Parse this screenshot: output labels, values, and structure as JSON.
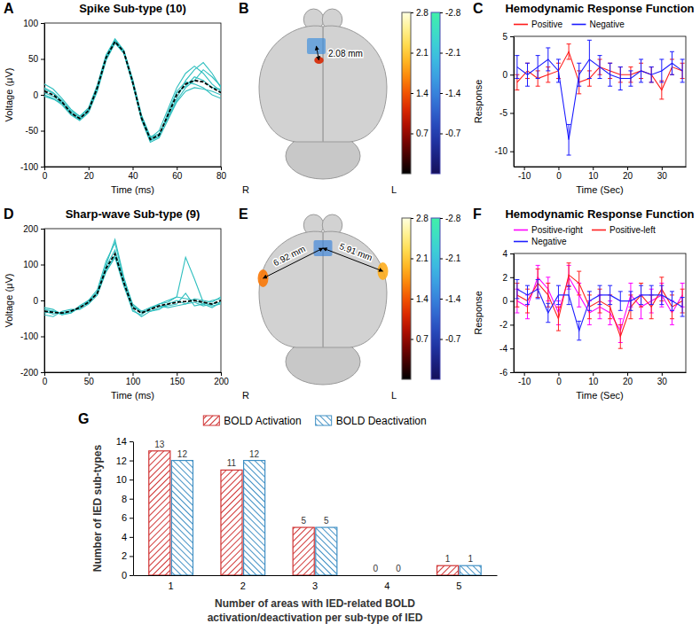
{
  "chart_data": [
    {
      "type": "line",
      "panel_label": "A",
      "title": "Spike Sub-type (10)",
      "x_label": "Time (ms)",
      "y_label": "Voltage (μV)",
      "x": [
        0,
        4,
        8,
        12,
        16,
        20,
        24,
        28,
        32,
        36,
        40,
        44,
        48,
        52,
        56,
        60,
        64,
        68,
        72,
        76,
        80
      ],
      "xlim": [
        0,
        80
      ],
      "xticks": [
        0,
        20,
        40,
        60,
        80
      ],
      "ylim": [
        -100,
        100
      ],
      "yticks": [
        -100,
        -50,
        0,
        50,
        100
      ],
      "series": [
        {
          "color": "#2fbfbf",
          "values": [
            10,
            3,
            -8,
            -22,
            -30,
            -20,
            12,
            55,
            78,
            62,
            20,
            -30,
            -60,
            -50,
            -20,
            10,
            30,
            40,
            30,
            15,
            5
          ]
        },
        {
          "color": "#2fbfbf",
          "values": [
            0,
            -5,
            -14,
            -28,
            -36,
            -25,
            5,
            48,
            72,
            58,
            15,
            -35,
            -66,
            -60,
            -35,
            -10,
            5,
            10,
            8,
            5,
            0
          ]
        },
        {
          "color": "#2fbfbf",
          "values": [
            15,
            8,
            -5,
            -20,
            -30,
            -18,
            14,
            56,
            76,
            62,
            22,
            -28,
            -58,
            -55,
            -30,
            -5,
            20,
            35,
            45,
            30,
            10
          ]
        },
        {
          "color": "#2fbfbf",
          "values": [
            -2,
            -6,
            -12,
            -27,
            -35,
            -24,
            8,
            50,
            73,
            58,
            16,
            -33,
            -64,
            -58,
            -25,
            5,
            18,
            15,
            10,
            0,
            -5
          ]
        },
        {
          "color": "#2fbfbf",
          "values": [
            8,
            2,
            -10,
            -26,
            -34,
            -21,
            9,
            53,
            75,
            61,
            19,
            -31,
            -63,
            -57,
            -27,
            3,
            12,
            25,
            20,
            10,
            8
          ]
        },
        {
          "color": "#2fbfbf",
          "values": [
            3,
            -2,
            -12,
            -24,
            -32,
            -23,
            11,
            51,
            74,
            59,
            17,
            -30,
            -61,
            -54,
            -33,
            -8,
            10,
            20,
            35,
            25,
            12
          ]
        },
        {
          "color": "#000000",
          "line_style": "dashed",
          "values": [
            5,
            0,
            -10,
            -25,
            -33,
            -22,
            10,
            52,
            74,
            60,
            18,
            -32,
            -62,
            -56,
            -28,
            0,
            15,
            20,
            18,
            10,
            3
          ]
        }
      ]
    },
    {
      "type": "brain_map",
      "panel_label": "B",
      "side_labels": [
        "R",
        "L"
      ],
      "annotations": [
        "2.08 mm"
      ],
      "clusters": [
        {
          "value": -1.5
        },
        {
          "value": 1.1
        }
      ],
      "colorbars": [
        {
          "lim": [
            0,
            2.8
          ],
          "ticks": [
            0.7,
            1.4,
            2.1,
            2.8
          ]
        },
        {
          "lim": [
            -2.8,
            0
          ],
          "ticks": [
            -2.8,
            -2.1,
            -1.4,
            -0.7
          ]
        }
      ]
    },
    {
      "type": "line",
      "panel_label": "C",
      "title": "Hemodynamic Response Function",
      "x_label": "Time (Sec)",
      "y_label": "Response",
      "x": [
        -12,
        -9,
        -6,
        -3,
        0,
        3,
        6,
        9,
        12,
        15,
        18,
        21,
        24,
        27,
        30,
        33,
        36
      ],
      "xlim": [
        -13,
        37
      ],
      "xticks": [
        -10,
        0,
        10,
        20,
        30
      ],
      "ylim": [
        -12,
        5
      ],
      "yticks": [
        -10,
        -5,
        0,
        5
      ],
      "legend": "top",
      "series": [
        {
          "name": "Positive",
          "color": "#ff1a1a",
          "values": [
            -1,
            0.5,
            -0.5,
            0,
            0.5,
            3,
            -1,
            -0.5,
            1,
            0.5,
            0,
            0,
            0.5,
            0,
            -2,
            1,
            0.5
          ],
          "errors": [
            1,
            1,
            1,
            1,
            1,
            1,
            1.5,
            1,
            1,
            1,
            1,
            1,
            1,
            1,
            1.2,
            1,
            1
          ]
        },
        {
          "name": "Negative",
          "color": "#1a1aff",
          "values": [
            1,
            0,
            1,
            2,
            0.5,
            -8.5,
            0,
            2,
            1,
            0,
            -0.5,
            -0.5,
            0.5,
            0,
            0.5,
            1.5,
            0.5
          ],
          "errors": [
            1.5,
            1.5,
            1.5,
            1.5,
            1.5,
            2,
            1.5,
            2.5,
            1.5,
            1.5,
            1.5,
            1,
            1.5,
            1,
            1.5,
            1.5,
            1.5
          ]
        }
      ]
    },
    {
      "type": "line",
      "panel_label": "D",
      "title": "Sharp-wave Sub-type (9)",
      "x_label": "Time (ms)",
      "y_label": "Voltage (μV)",
      "x": [
        0,
        10,
        20,
        30,
        40,
        50,
        60,
        70,
        80,
        90,
        100,
        110,
        120,
        130,
        140,
        150,
        160,
        170,
        180,
        190,
        200
      ],
      "xlim": [
        0,
        200
      ],
      "xticks": [
        0,
        50,
        100,
        150,
        200
      ],
      "ylim": [
        -200,
        200
      ],
      "yticks": [
        -200,
        -100,
        0,
        100,
        200
      ],
      "series": [
        {
          "color": "#2fbfbf",
          "values": [
            -20,
            -25,
            -40,
            -35,
            -15,
            0,
            30,
            110,
            160,
            60,
            -10,
            -30,
            -20,
            -10,
            0,
            10,
            5,
            0,
            -10,
            -20,
            -5
          ]
        },
        {
          "color": "#2fbfbf",
          "values": [
            -40,
            -45,
            -30,
            -25,
            -25,
            -10,
            15,
            80,
            120,
            40,
            -25,
            -45,
            -30,
            -20,
            -15,
            -10,
            20,
            -15,
            -10,
            0,
            5
          ]
        },
        {
          "color": "#2fbfbf",
          "values": [
            -25,
            -30,
            -35,
            -35,
            -20,
            -5,
            25,
            95,
            140,
            55,
            -15,
            -35,
            -25,
            -10,
            -5,
            10,
            120,
            60,
            -5,
            -15,
            -10
          ]
        },
        {
          "color": "#2fbfbf",
          "values": [
            -35,
            -30,
            -40,
            -28,
            -22,
            0,
            18,
            85,
            125,
            45,
            -30,
            -40,
            -20,
            -15,
            -20,
            -15,
            -10,
            5,
            0,
            -5,
            10
          ]
        },
        {
          "color": "#2fbfbf",
          "values": [
            -30,
            -38,
            -32,
            -32,
            -18,
            -8,
            22,
            100,
            170,
            65,
            -15,
            -30,
            -30,
            -25,
            -10,
            0,
            -10,
            -5,
            -15,
            -10,
            -5
          ]
        },
        {
          "color": "#000000",
          "line_style": "dashed",
          "values": [
            -30,
            -33,
            -35,
            -30,
            -20,
            -5,
            20,
            90,
            130,
            50,
            -20,
            -35,
            -25,
            -15,
            -10,
            -5,
            -3,
            0,
            -5,
            -10,
            0
          ]
        }
      ]
    },
    {
      "type": "brain_map",
      "panel_label": "E",
      "side_labels": [
        "R",
        "L"
      ],
      "annotations": [
        "6.92 mm",
        "5.91 mm"
      ],
      "clusters": [
        {
          "value": -1.4
        },
        {
          "value": 1.6
        },
        {
          "value": 1.9
        }
      ],
      "colorbars": [
        {
          "lim": [
            0,
            2.8
          ],
          "ticks": [
            0.7,
            1.4,
            2.1,
            2.8
          ]
        },
        {
          "lim": [
            -2.8,
            0
          ],
          "ticks": [
            -2.8,
            -2.1,
            -1.4,
            -0.7
          ]
        }
      ]
    },
    {
      "type": "line",
      "panel_label": "F",
      "title": "Hemodynamic Response Function",
      "x_label": "Time (Sec)",
      "y_label": "Response",
      "x": [
        -12,
        -9,
        -6,
        -3,
        0,
        3,
        6,
        9,
        12,
        15,
        18,
        21,
        24,
        27,
        30,
        33,
        36
      ],
      "xlim": [
        -13,
        37
      ],
      "xticks": [
        -10,
        0,
        10,
        20,
        30
      ],
      "ylim": [
        -6,
        4
      ],
      "yticks": [
        -6,
        -4,
        -2,
        0,
        2,
        4
      ],
      "legend": "top",
      "series": [
        {
          "name": "Positive-right",
          "color": "#ff00ff",
          "values": [
            0,
            -0.5,
            2,
            1,
            -1,
            2,
            0.5,
            -1,
            -0.5,
            -1,
            -2.5,
            0.5,
            -0.5,
            0,
            0.5,
            -1,
            0.5
          ],
          "errors": [
            1,
            1,
            1,
            1,
            1,
            1,
            1,
            1,
            1,
            1,
            1,
            1,
            1,
            1,
            1,
            1,
            1
          ]
        },
        {
          "name": "Positive-left",
          "color": "#ff2020",
          "values": [
            0.5,
            0,
            1.5,
            0.5,
            -1.5,
            2.2,
            1.5,
            -0.5,
            0,
            -0.5,
            -3,
            -0.5,
            0.5,
            -0.5,
            1,
            -0.5,
            0
          ],
          "errors": [
            1,
            1,
            1.2,
            1,
            1,
            1,
            1,
            1,
            1,
            1,
            1,
            1,
            1,
            1,
            1,
            1,
            1
          ]
        },
        {
          "name": "Negative",
          "color": "#2020ff",
          "values": [
            1,
            0.5,
            1,
            -1,
            0.5,
            0.5,
            -2.5,
            0,
            0.5,
            0.5,
            0,
            0,
            0.5,
            0.5,
            0.5,
            0,
            -0.5
          ],
          "errors": [
            0.8,
            0.8,
            0.8,
            0.8,
            0.8,
            0.8,
            0.8,
            0.8,
            0.8,
            0.8,
            0.8,
            0.8,
            0.8,
            0.8,
            0.8,
            0.8,
            0.8
          ]
        }
      ]
    },
    {
      "type": "bar",
      "panel_label": "G",
      "x_label": "Number of areas with IED-related BOLD activation/deactivation per sub-type of IED",
      "y_label": "Number of IED sub-types",
      "categories": [
        "1",
        "2",
        "3",
        "4",
        "5"
      ],
      "ylim": [
        0,
        14
      ],
      "yticks": [
        0,
        2,
        4,
        6,
        8,
        10,
        12,
        14
      ],
      "legend": "top",
      "data_labels": true,
      "series": [
        {
          "name": "BOLD Activation",
          "color": "#d03434",
          "values": [
            13,
            11,
            5,
            0,
            1
          ]
        },
        {
          "name": "BOLD Deactivation",
          "color": "#3f8fc4",
          "values": [
            12,
            12,
            5,
            0,
            1
          ]
        }
      ]
    }
  ]
}
